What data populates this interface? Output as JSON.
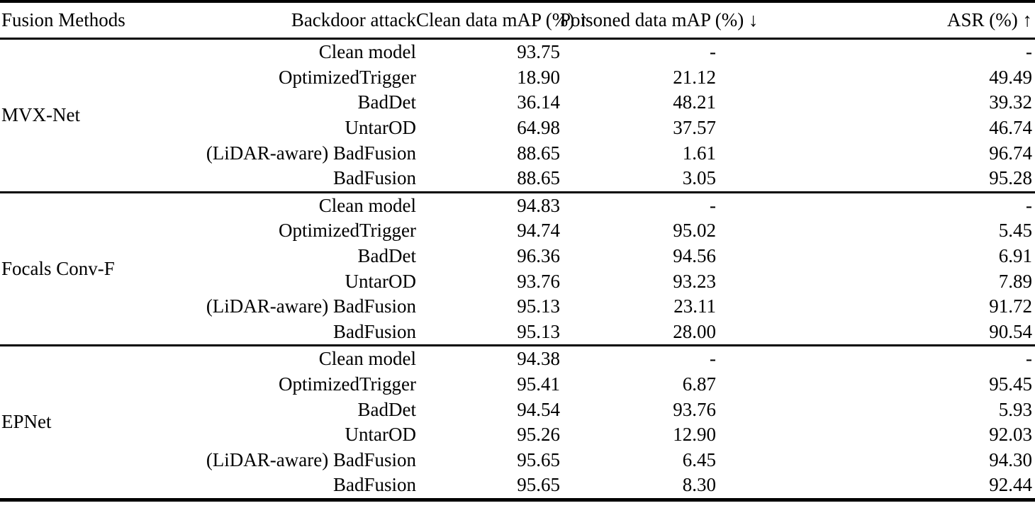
{
  "table": {
    "headers": {
      "fusion_methods": "Fusion Methods",
      "backdoor_attack": "Backdoor attack",
      "clean_map": "Clean data mAP (%) ↑",
      "poisoned_map": "Poisoned data mAP (%) ↓",
      "asr": "ASR (%) ↑"
    },
    "groups": [
      {
        "method": "MVX-Net",
        "rows": [
          {
            "attack": "Clean model",
            "clean_map": "93.75",
            "poisoned_map": "-",
            "asr": "-"
          },
          {
            "attack": "OptimizedTrigger",
            "clean_map": "18.90",
            "poisoned_map": "21.12",
            "asr": "49.49"
          },
          {
            "attack": "BadDet",
            "clean_map": "36.14",
            "poisoned_map": "48.21",
            "asr": "39.32"
          },
          {
            "attack": "UntarOD",
            "clean_map": "64.98",
            "poisoned_map": "37.57",
            "asr": "46.74"
          },
          {
            "attack": "(LiDAR-aware) BadFusion",
            "clean_map": "88.65",
            "poisoned_map": "1.61",
            "asr": "96.74"
          },
          {
            "attack": "BadFusion",
            "clean_map": "88.65",
            "poisoned_map": "3.05",
            "asr": "95.28"
          }
        ]
      },
      {
        "method": "Focals Conv-F",
        "rows": [
          {
            "attack": "Clean model",
            "clean_map": "94.83",
            "poisoned_map": "-",
            "asr": "-"
          },
          {
            "attack": "OptimizedTrigger",
            "clean_map": "94.74",
            "poisoned_map": "95.02",
            "asr": "5.45"
          },
          {
            "attack": "BadDet",
            "clean_map": "96.36",
            "poisoned_map": "94.56",
            "asr": "6.91"
          },
          {
            "attack": "UntarOD",
            "clean_map": "93.76",
            "poisoned_map": "93.23",
            "asr": "7.89"
          },
          {
            "attack": "(LiDAR-aware) BadFusion",
            "clean_map": "95.13",
            "poisoned_map": "23.11",
            "asr": "91.72"
          },
          {
            "attack": "BadFusion",
            "clean_map": "95.13",
            "poisoned_map": "28.00",
            "asr": "90.54"
          }
        ]
      },
      {
        "method": "EPNet",
        "rows": [
          {
            "attack": "Clean model",
            "clean_map": "94.38",
            "poisoned_map": "-",
            "asr": "-"
          },
          {
            "attack": "OptimizedTrigger",
            "clean_map": "95.41",
            "poisoned_map": "6.87",
            "asr": "95.45"
          },
          {
            "attack": "BadDet",
            "clean_map": "94.54",
            "poisoned_map": "93.76",
            "asr": "5.93"
          },
          {
            "attack": "UntarOD",
            "clean_map": "95.26",
            "poisoned_map": "12.90",
            "asr": "92.03"
          },
          {
            "attack": "(LiDAR-aware) BadFusion",
            "clean_map": "95.65",
            "poisoned_map": "6.45",
            "asr": "94.30"
          },
          {
            "attack": "BadFusion",
            "clean_map": "95.65",
            "poisoned_map": "8.30",
            "asr": "92.44"
          }
        ]
      }
    ]
  }
}
